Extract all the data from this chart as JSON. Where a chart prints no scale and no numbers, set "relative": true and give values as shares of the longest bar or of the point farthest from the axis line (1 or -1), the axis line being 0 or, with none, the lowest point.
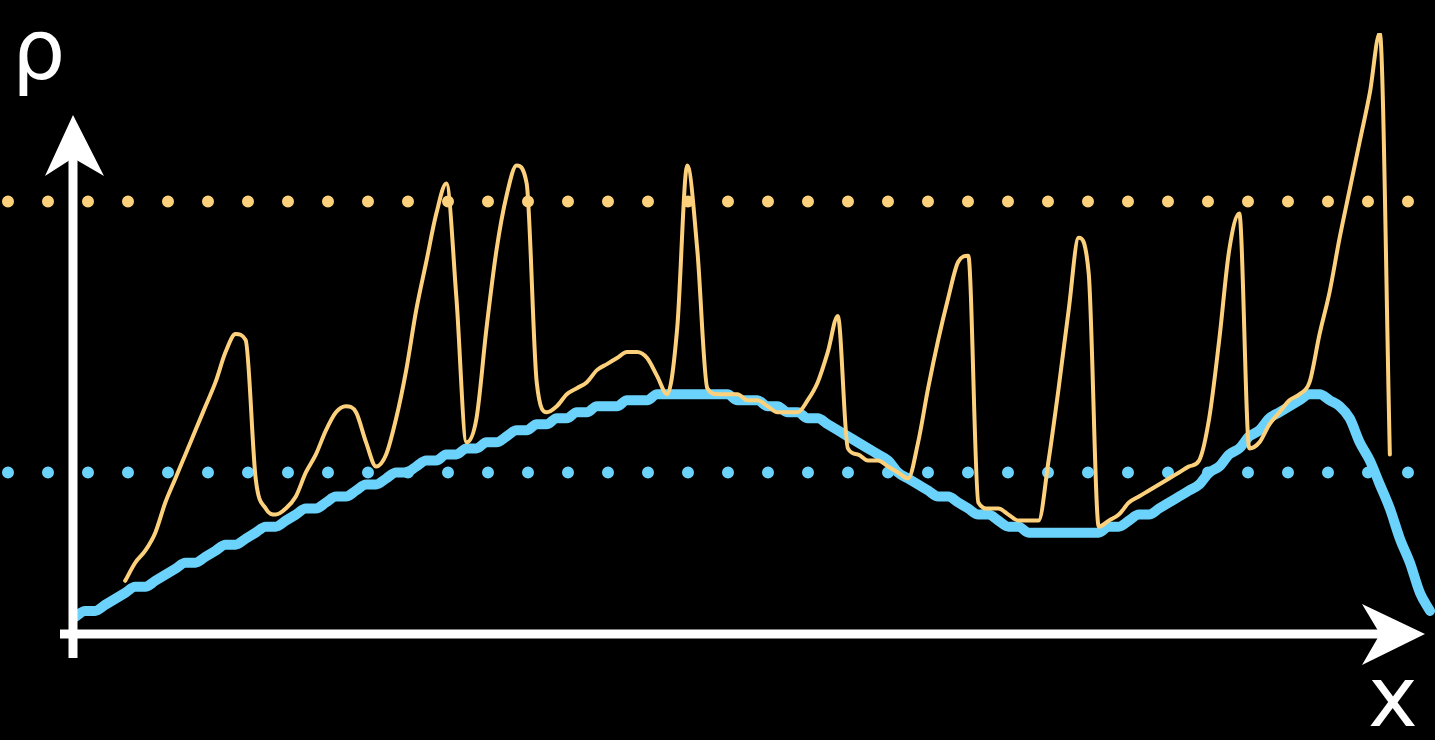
{
  "chart_data": {
    "type": "line",
    "relative": true,
    "xlabel": "x",
    "ylabel": "ρ",
    "marker": "none",
    "tick_labels": false,
    "categories": [
      null,
      null,
      null,
      null,
      null,
      null,
      null,
      null,
      null,
      null,
      null,
      null,
      null,
      null,
      null,
      null,
      null,
      null,
      null,
      null,
      null,
      null,
      null,
      null,
      null,
      null,
      null,
      null,
      null,
      null,
      null,
      null,
      null,
      null,
      null,
      null,
      null,
      null,
      null,
      null,
      null,
      null,
      null,
      null,
      null,
      null,
      null,
      null,
      null,
      null,
      null,
      null,
      null,
      null,
      null,
      null,
      null,
      null,
      null,
      null,
      null,
      null,
      null,
      null,
      null,
      null,
      null,
      null,
      null,
      null,
      null,
      null,
      null,
      null,
      null,
      null,
      null,
      null,
      null,
      null,
      null,
      null,
      null,
      null,
      null,
      null,
      null,
      null,
      null,
      null,
      null,
      null,
      null,
      null,
      null,
      null,
      null,
      null,
      null,
      null,
      null,
      null,
      null,
      null,
      null,
      null,
      null,
      null,
      null,
      null,
      null,
      null,
      null,
      null,
      null,
      null,
      null,
      null,
      null,
      null,
      null,
      null,
      null,
      null,
      null,
      null,
      null,
      null,
      null,
      null,
      null,
      null,
      null,
      null,
      null,
      null
    ],
    "series": [
      {
        "color": "#6bd2fb",
        "values": [
          0.03,
          0.04,
          0.04,
          0.05,
          0.06,
          0.07,
          0.08,
          0.08,
          0.09,
          0.1,
          0.11,
          0.12,
          0.12,
          0.13,
          0.14,
          0.15,
          0.15,
          0.16,
          0.17,
          0.18,
          0.18,
          0.19,
          0.2,
          0.21,
          0.21,
          0.22,
          0.23,
          0.23,
          0.24,
          0.25,
          0.25,
          0.26,
          0.27,
          0.27,
          0.28,
          0.29,
          0.29,
          0.3,
          0.3,
          0.31,
          0.31,
          0.32,
          0.32,
          0.33,
          0.34,
          0.34,
          0.35,
          0.35,
          0.36,
          0.36,
          0.37,
          0.37,
          0.38,
          0.38,
          0.38,
          0.39,
          0.39,
          0.39,
          0.4,
          0.4,
          0.4,
          0.4,
          0.4,
          0.4,
          0.4,
          0.4,
          0.39,
          0.39,
          0.39,
          0.38,
          0.38,
          0.37,
          0.37,
          0.36,
          0.36,
          0.35,
          0.34,
          0.33,
          0.32,
          0.31,
          0.3,
          0.29,
          0.27,
          0.26,
          0.25,
          0.24,
          0.23,
          0.23,
          0.22,
          0.21,
          0.2,
          0.2,
          0.19,
          0.18,
          0.18,
          0.17,
          0.17,
          0.17,
          0.17,
          0.17,
          0.17,
          0.17,
          0.17,
          0.18,
          0.18,
          0.19,
          0.2,
          0.2,
          0.21,
          0.22,
          0.23,
          0.24,
          0.25,
          0.27,
          0.28,
          0.3,
          0.31,
          0.33,
          0.34,
          0.36,
          0.37,
          0.38,
          0.39,
          0.4,
          0.4,
          0.39,
          0.38,
          0.36,
          0.32,
          0.29,
          0.25,
          0.21,
          0.16,
          0.12,
          0.07,
          0.04
        ]
      },
      {
        "color": "#fdd17c",
        "values": [
          null,
          null,
          null,
          null,
          null,
          0.09,
          0.12,
          0.14,
          0.17,
          0.22,
          0.26,
          0.3,
          0.34,
          0.38,
          0.42,
          0.47,
          0.5,
          0.49,
          0.26,
          0.21,
          0.2,
          0.21,
          0.23,
          0.27,
          0.3,
          0.34,
          0.37,
          0.38,
          0.37,
          0.32,
          0.28,
          0.3,
          0.36,
          0.44,
          0.54,
          0.62,
          0.7,
          0.75,
          0.56,
          0.32,
          0.36,
          0.51,
          0.64,
          0.73,
          0.78,
          0.75,
          0.42,
          0.37,
          0.38,
          0.4,
          0.41,
          0.42,
          0.44,
          0.45,
          0.46,
          0.47,
          0.47,
          0.46,
          0.43,
          0.4,
          0.51,
          0.78,
          0.64,
          0.41,
          0.4,
          0.4,
          0.4,
          0.39,
          0.39,
          0.38,
          0.37,
          0.37,
          0.37,
          0.39,
          0.42,
          0.47,
          0.53,
          0.31,
          0.3,
          0.29,
          0.29,
          0.28,
          0.27,
          0.26,
          0.32,
          0.41,
          0.49,
          0.56,
          0.62,
          0.63,
          0.22,
          0.21,
          0.21,
          0.2,
          0.19,
          0.19,
          0.19,
          0.29,
          0.41,
          0.54,
          0.66,
          0.6,
          0.18,
          0.19,
          0.2,
          0.22,
          0.23,
          0.24,
          0.25,
          0.26,
          0.27,
          0.28,
          0.29,
          0.36,
          0.49,
          0.64,
          0.7,
          0.31,
          0.32,
          0.35,
          0.37,
          0.39,
          0.4,
          0.42,
          0.5,
          0.57,
          0.66,
          0.74,
          0.82,
          0.9,
          1,
          0.3,
          null,
          null,
          null,
          null
        ]
      }
    ],
    "ref_lines": [
      {
        "axis": "y",
        "value": 0.72,
        "color": "#fdd17c",
        "line_style": "dotted"
      },
      {
        "axis": "y",
        "value": 0.27,
        "color": "#6bd2fb",
        "line_style": "dotted"
      }
    ]
  }
}
